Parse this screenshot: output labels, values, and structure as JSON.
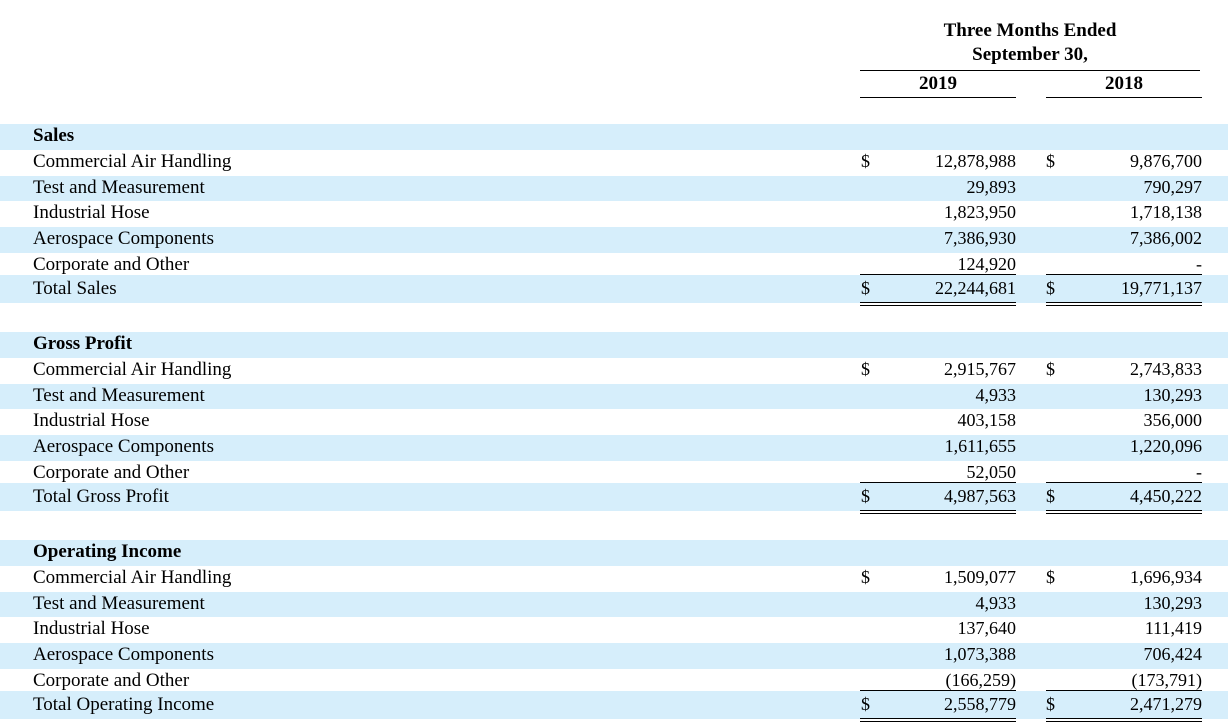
{
  "header": {
    "period_line1": "Three Months Ended",
    "period_line2": "September 30,",
    "year1": "2019",
    "year2": "2018"
  },
  "colors": {
    "band": "#d6eefb"
  },
  "currency_symbol": "$",
  "sections": [
    {
      "title": "Sales",
      "rows": [
        {
          "label": "Commercial Air Handling",
          "v2019": "12,878,988",
          "v2018": "9,876,700",
          "dollar": true
        },
        {
          "label": "Test and Measurement",
          "v2019": "29,893",
          "v2018": "790,297"
        },
        {
          "label": "Industrial Hose",
          "v2019": "1,823,950",
          "v2018": "1,718,138"
        },
        {
          "label": "Aerospace Components",
          "v2019": "7,386,930",
          "v2018": "7,386,002"
        },
        {
          "label": "Corporate and Other",
          "v2019": "124,920",
          "v2018": "-"
        }
      ],
      "total": {
        "label": "Total Sales",
        "v2019": "22,244,681",
        "v2018": "19,771,137"
      }
    },
    {
      "title": "Gross Profit",
      "rows": [
        {
          "label": "Commercial Air Handling",
          "v2019": "2,915,767",
          "v2018": "2,743,833",
          "dollar": true
        },
        {
          "label": "Test and Measurement",
          "v2019": "4,933",
          "v2018": "130,293"
        },
        {
          "label": "Industrial Hose",
          "v2019": "403,158",
          "v2018": "356,000"
        },
        {
          "label": "Aerospace Components",
          "v2019": "1,611,655",
          "v2018": "1,220,096"
        },
        {
          "label": "Corporate and Other",
          "v2019": "52,050",
          "v2018": "-"
        }
      ],
      "total": {
        "label": "Total Gross Profit",
        "v2019": "4,987,563",
        "v2018": "4,450,222"
      }
    },
    {
      "title": "Operating Income",
      "rows": [
        {
          "label": "Commercial Air Handling",
          "v2019": "1,509,077",
          "v2018": "1,696,934",
          "dollar": true
        },
        {
          "label": "Test and Measurement",
          "v2019": "4,933",
          "v2018": "130,293"
        },
        {
          "label": "Industrial Hose",
          "v2019": "137,640",
          "v2018": "111,419"
        },
        {
          "label": "Aerospace Components",
          "v2019": "1,073,388",
          "v2018": "706,424"
        },
        {
          "label": "Corporate and Other",
          "v2019": "(166,259)",
          "v2018": "(173,791)"
        }
      ],
      "total": {
        "label": "Total Operating Income",
        "v2019": "2,558,779",
        "v2018": "2,471,279"
      }
    }
  ]
}
